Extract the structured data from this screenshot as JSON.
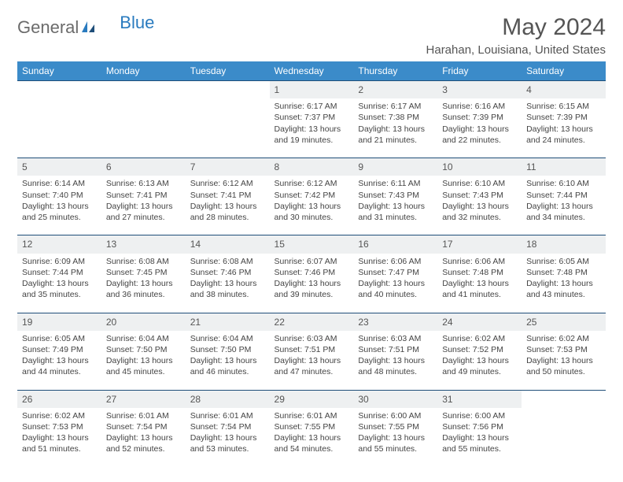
{
  "brand": {
    "part1": "General",
    "part2": "Blue"
  },
  "title": "May 2024",
  "location": "Harahan, Louisiana, United States",
  "colors": {
    "header_bg": "#3b8bc9",
    "header_text": "#ffffff",
    "daynum_bg": "#eef0f1",
    "row_border": "#1f4e79",
    "body_text": "#444444",
    "title_text": "#555555",
    "logo_gray": "#6b6b6b",
    "logo_blue": "#2a7bbf"
  },
  "weekdays": [
    "Sunday",
    "Monday",
    "Tuesday",
    "Wednesday",
    "Thursday",
    "Friday",
    "Saturday"
  ],
  "weeks": [
    {
      "nums": [
        "",
        "",
        "",
        "1",
        "2",
        "3",
        "4"
      ],
      "cells": [
        null,
        null,
        null,
        {
          "sunrise": "6:17 AM",
          "sunset": "7:37 PM",
          "daylight": "13 hours and 19 minutes."
        },
        {
          "sunrise": "6:17 AM",
          "sunset": "7:38 PM",
          "daylight": "13 hours and 21 minutes."
        },
        {
          "sunrise": "6:16 AM",
          "sunset": "7:39 PM",
          "daylight": "13 hours and 22 minutes."
        },
        {
          "sunrise": "6:15 AM",
          "sunset": "7:39 PM",
          "daylight": "13 hours and 24 minutes."
        }
      ]
    },
    {
      "nums": [
        "5",
        "6",
        "7",
        "8",
        "9",
        "10",
        "11"
      ],
      "cells": [
        {
          "sunrise": "6:14 AM",
          "sunset": "7:40 PM",
          "daylight": "13 hours and 25 minutes."
        },
        {
          "sunrise": "6:13 AM",
          "sunset": "7:41 PM",
          "daylight": "13 hours and 27 minutes."
        },
        {
          "sunrise": "6:12 AM",
          "sunset": "7:41 PM",
          "daylight": "13 hours and 28 minutes."
        },
        {
          "sunrise": "6:12 AM",
          "sunset": "7:42 PM",
          "daylight": "13 hours and 30 minutes."
        },
        {
          "sunrise": "6:11 AM",
          "sunset": "7:43 PM",
          "daylight": "13 hours and 31 minutes."
        },
        {
          "sunrise": "6:10 AM",
          "sunset": "7:43 PM",
          "daylight": "13 hours and 32 minutes."
        },
        {
          "sunrise": "6:10 AM",
          "sunset": "7:44 PM",
          "daylight": "13 hours and 34 minutes."
        }
      ]
    },
    {
      "nums": [
        "12",
        "13",
        "14",
        "15",
        "16",
        "17",
        "18"
      ],
      "cells": [
        {
          "sunrise": "6:09 AM",
          "sunset": "7:44 PM",
          "daylight": "13 hours and 35 minutes."
        },
        {
          "sunrise": "6:08 AM",
          "sunset": "7:45 PM",
          "daylight": "13 hours and 36 minutes."
        },
        {
          "sunrise": "6:08 AM",
          "sunset": "7:46 PM",
          "daylight": "13 hours and 38 minutes."
        },
        {
          "sunrise": "6:07 AM",
          "sunset": "7:46 PM",
          "daylight": "13 hours and 39 minutes."
        },
        {
          "sunrise": "6:06 AM",
          "sunset": "7:47 PM",
          "daylight": "13 hours and 40 minutes."
        },
        {
          "sunrise": "6:06 AM",
          "sunset": "7:48 PM",
          "daylight": "13 hours and 41 minutes."
        },
        {
          "sunrise": "6:05 AM",
          "sunset": "7:48 PM",
          "daylight": "13 hours and 43 minutes."
        }
      ]
    },
    {
      "nums": [
        "19",
        "20",
        "21",
        "22",
        "23",
        "24",
        "25"
      ],
      "cells": [
        {
          "sunrise": "6:05 AM",
          "sunset": "7:49 PM",
          "daylight": "13 hours and 44 minutes."
        },
        {
          "sunrise": "6:04 AM",
          "sunset": "7:50 PM",
          "daylight": "13 hours and 45 minutes."
        },
        {
          "sunrise": "6:04 AM",
          "sunset": "7:50 PM",
          "daylight": "13 hours and 46 minutes."
        },
        {
          "sunrise": "6:03 AM",
          "sunset": "7:51 PM",
          "daylight": "13 hours and 47 minutes."
        },
        {
          "sunrise": "6:03 AM",
          "sunset": "7:51 PM",
          "daylight": "13 hours and 48 minutes."
        },
        {
          "sunrise": "6:02 AM",
          "sunset": "7:52 PM",
          "daylight": "13 hours and 49 minutes."
        },
        {
          "sunrise": "6:02 AM",
          "sunset": "7:53 PM",
          "daylight": "13 hours and 50 minutes."
        }
      ]
    },
    {
      "nums": [
        "26",
        "27",
        "28",
        "29",
        "30",
        "31",
        ""
      ],
      "cells": [
        {
          "sunrise": "6:02 AM",
          "sunset": "7:53 PM",
          "daylight": "13 hours and 51 minutes."
        },
        {
          "sunrise": "6:01 AM",
          "sunset": "7:54 PM",
          "daylight": "13 hours and 52 minutes."
        },
        {
          "sunrise": "6:01 AM",
          "sunset": "7:54 PM",
          "daylight": "13 hours and 53 minutes."
        },
        {
          "sunrise": "6:01 AM",
          "sunset": "7:55 PM",
          "daylight": "13 hours and 54 minutes."
        },
        {
          "sunrise": "6:00 AM",
          "sunset": "7:55 PM",
          "daylight": "13 hours and 55 minutes."
        },
        {
          "sunrise": "6:00 AM",
          "sunset": "7:56 PM",
          "daylight": "13 hours and 55 minutes."
        },
        null
      ]
    }
  ],
  "labels": {
    "sunrise": "Sunrise:",
    "sunset": "Sunset:",
    "daylight": "Daylight:"
  }
}
